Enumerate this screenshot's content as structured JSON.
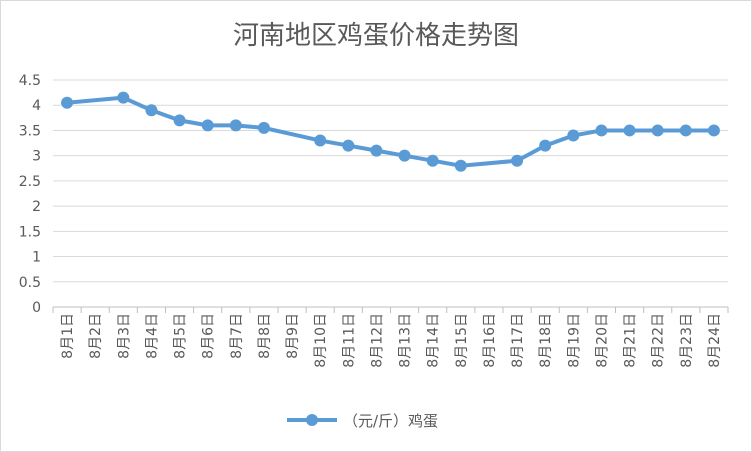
{
  "chart_data": {
    "type": "line",
    "title": "河南地区鸡蛋价格走势图",
    "xlabel": "",
    "ylabel": "",
    "ylim": [
      0,
      4.5
    ],
    "yticks": [
      0,
      0.5,
      1,
      1.5,
      2,
      2.5,
      3,
      3.5,
      4,
      4.5
    ],
    "grid": true,
    "legend_position": "bottom",
    "categories": [
      "8月1日",
      "8月2日",
      "8月3日",
      "8月4日",
      "8月5日",
      "8月6日",
      "8月7日",
      "8月8日",
      "8月9日",
      "8月10日",
      "8月11日",
      "8月12日",
      "8月13日",
      "8月14日",
      "8月15日",
      "8月16日",
      "8月17日",
      "8月18日",
      "8月19日",
      "8月20日",
      "8月21日",
      "8月22日",
      "8月23日",
      "8月24日"
    ],
    "series": [
      {
        "name": "（元/斤）鸡蛋",
        "color": "#5b9bd5",
        "values": [
          4.05,
          null,
          4.15,
          3.9,
          3.7,
          3.6,
          3.6,
          3.55,
          null,
          3.3,
          3.2,
          3.1,
          3.0,
          2.9,
          2.8,
          null,
          2.9,
          3.2,
          3.4,
          3.5,
          3.5,
          3.5,
          3.5,
          3.5
        ]
      }
    ]
  }
}
